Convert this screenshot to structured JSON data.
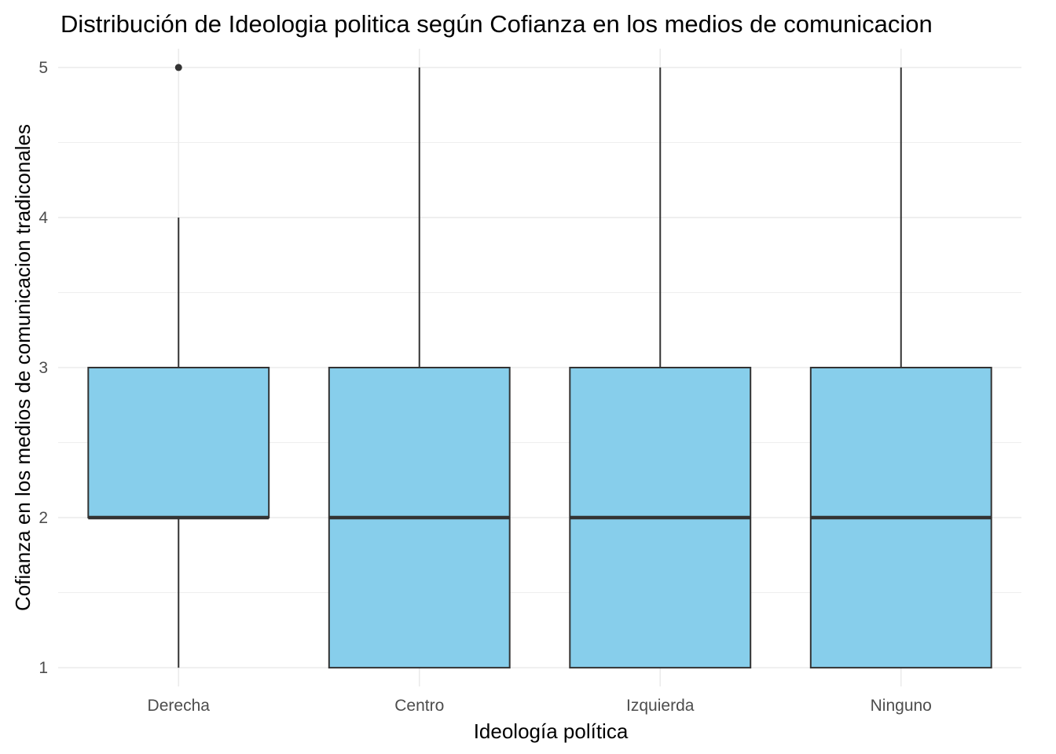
{
  "chart_data": {
    "type": "boxplot",
    "title": "Distribución de Ideologia politica según Cofianza en los medios de comunicacion",
    "xlabel": "Ideología política",
    "ylabel": "Cofianza en los medios de comunicacion tradiconales",
    "categories": [
      "Derecha",
      "Centro",
      "Izquierda",
      "Ninguno"
    ],
    "ylim": [
      0.875,
      5.125
    ],
    "yticks": [
      1,
      2,
      3,
      4,
      5
    ],
    "grid": true,
    "box_fill": "#87CEEB",
    "line_color": "#333333",
    "boxes": [
      {
        "category": "Derecha",
        "whisker_low": 1,
        "q1": 2,
        "median": 2,
        "q3": 3,
        "whisker_high": 4,
        "outliers": [
          5
        ]
      },
      {
        "category": "Centro",
        "whisker_low": 1,
        "q1": 1,
        "median": 2,
        "q3": 3,
        "whisker_high": 5,
        "outliers": []
      },
      {
        "category": "Izquierda",
        "whisker_low": 1,
        "q1": 1,
        "median": 2,
        "q3": 3,
        "whisker_high": 5,
        "outliers": []
      },
      {
        "category": "Ninguno",
        "whisker_low": 1,
        "q1": 1,
        "median": 2,
        "q3": 3,
        "whisker_high": 5,
        "outliers": []
      }
    ]
  }
}
